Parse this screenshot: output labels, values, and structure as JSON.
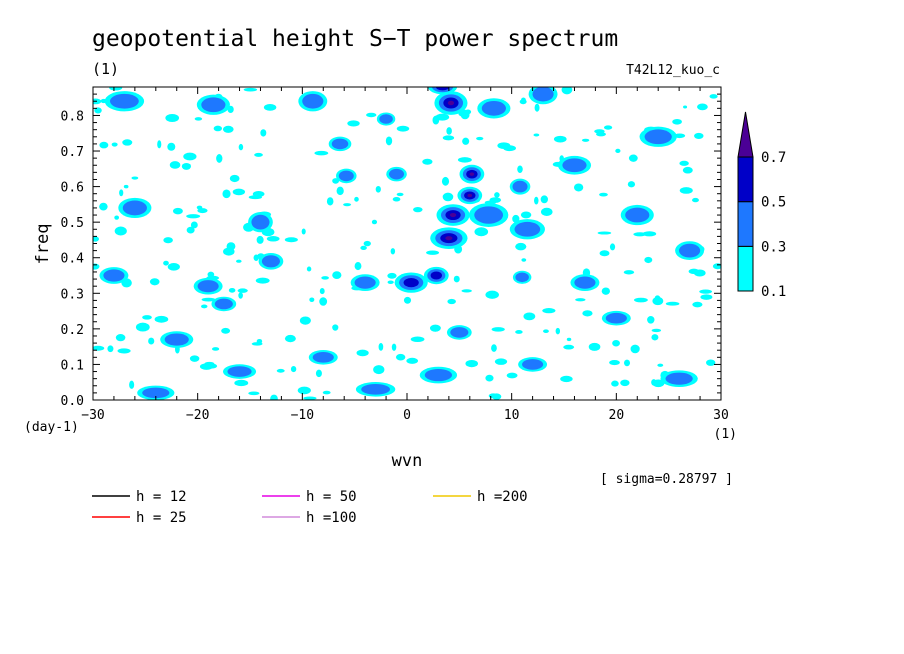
{
  "chart_data": {
    "type": "heatmap",
    "title": "geopotential height S−T power spectrum",
    "subtitle_left": "(1)",
    "subtitle_right": "T42L12_kuo_c",
    "xlabel": "wvn",
    "ylabel": "freq",
    "x_unit": "(1)",
    "y_unit": "(day-1)",
    "sigma_note": "[ sigma=0.28797 ]",
    "xlim": [
      -30,
      30
    ],
    "ylim": [
      0,
      0.88
    ],
    "x_ticks": [
      -30,
      -20,
      -10,
      0,
      10,
      20,
      30
    ],
    "x_tick_labels": [
      "−30",
      "−20",
      "−10",
      "0",
      "10",
      "20",
      "30"
    ],
    "y_ticks": [
      0.0,
      0.1,
      0.2,
      0.3,
      0.4,
      0.5,
      0.6,
      0.7,
      0.8
    ],
    "y_tick_labels": [
      "0.0",
      "0.1",
      "0.2",
      "0.3",
      "0.4",
      "0.5",
      "0.6",
      "0.7",
      "0.8"
    ],
    "colorbar": {
      "levels": [
        0.1,
        0.3,
        0.5,
        0.7
      ],
      "level_labels": [
        "0.1",
        "0.3",
        "0.5",
        "0.7"
      ],
      "colors": [
        "#00ffff",
        "#1e78ff",
        "#0000c8",
        "#4b0096"
      ]
    },
    "dispersion_curves": [
      {
        "name": "h = 12",
        "h": 12,
        "color": "#000000"
      },
      {
        "name": "h = 25",
        "h": 25,
        "color": "#ff0000"
      },
      {
        "name": "h = 50",
        "h": 50,
        "color": "#e600e6"
      },
      {
        "name": "h =100",
        "h": 100,
        "color": "#d28cdc"
      },
      {
        "name": "h =200",
        "h": 200,
        "color": "#f0c800"
      }
    ],
    "blobs": [
      {
        "x": 4.2,
        "y": 0.835,
        "level": 3,
        "rx": 1.2,
        "ry": 0.025
      },
      {
        "x": 4.4,
        "y": 0.52,
        "level": 3,
        "rx": 1.2,
        "ry": 0.022
      },
      {
        "x": 4.0,
        "y": 0.455,
        "level": 3,
        "rx": 1.4,
        "ry": 0.022
      },
      {
        "x": 6.2,
        "y": 0.635,
        "level": 3,
        "rx": 0.8,
        "ry": 0.018
      },
      {
        "x": 6.0,
        "y": 0.575,
        "level": 3,
        "rx": 0.8,
        "ry": 0.016
      },
      {
        "x": 0.4,
        "y": 0.33,
        "level": 2,
        "rx": 1.2,
        "ry": 0.02
      },
      {
        "x": 2.8,
        "y": 0.35,
        "level": 2,
        "rx": 0.8,
        "ry": 0.016
      },
      {
        "x": 3.4,
        "y": 0.88,
        "level": 2,
        "rx": 1.0,
        "ry": 0.012
      },
      {
        "x": -6.4,
        "y": 0.72,
        "level": 1,
        "rx": 0.7,
        "ry": 0.012
      },
      {
        "x": -5.8,
        "y": 0.63,
        "level": 1,
        "rx": 0.6,
        "ry": 0.012
      },
      {
        "x": -1.0,
        "y": 0.635,
        "level": 1,
        "rx": 0.6,
        "ry": 0.012
      },
      {
        "x": 11.0,
        "y": 0.345,
        "level": 1,
        "rx": 0.5,
        "ry": 0.01
      },
      {
        "x": 10.8,
        "y": 0.6,
        "level": 1,
        "rx": 0.6,
        "ry": 0.014
      },
      {
        "x": -2.0,
        "y": 0.79,
        "level": 1,
        "rx": 0.5,
        "ry": 0.01
      },
      {
        "x": -17.5,
        "y": 0.27,
        "level": 1,
        "rx": 0.8,
        "ry": 0.012
      },
      {
        "x": 7.8,
        "y": 0.52,
        "level": 1,
        "rx": 1.5,
        "ry": 0.025
      },
      {
        "x": 11.5,
        "y": 0.48,
        "level": 1,
        "rx": 1.3,
        "ry": 0.02
      },
      {
        "x": 8.3,
        "y": 0.82,
        "level": 1,
        "rx": 1.2,
        "ry": 0.02
      },
      {
        "x": 13.0,
        "y": 0.86,
        "level": 1,
        "rx": 1.0,
        "ry": 0.02
      },
      {
        "x": -27.0,
        "y": 0.84,
        "level": 1,
        "rx": 1.5,
        "ry": 0.02
      },
      {
        "x": -18.5,
        "y": 0.83,
        "level": 1,
        "rx": 1.2,
        "ry": 0.02
      },
      {
        "x": -9.0,
        "y": 0.84,
        "level": 1,
        "rx": 1.0,
        "ry": 0.02
      },
      {
        "x": -14.0,
        "y": 0.5,
        "level": 1,
        "rx": 0.8,
        "ry": 0.02
      },
      {
        "x": -26.0,
        "y": 0.54,
        "level": 1,
        "rx": 1.2,
        "ry": 0.02
      },
      {
        "x": -13.0,
        "y": 0.39,
        "level": 1,
        "rx": 0.8,
        "ry": 0.015
      },
      {
        "x": -19.0,
        "y": 0.32,
        "level": 1,
        "rx": 1.0,
        "ry": 0.015
      },
      {
        "x": -4.0,
        "y": 0.33,
        "level": 1,
        "rx": 1.0,
        "ry": 0.015
      },
      {
        "x": 5.0,
        "y": 0.19,
        "level": 1,
        "rx": 0.8,
        "ry": 0.012
      },
      {
        "x": -22.0,
        "y": 0.17,
        "level": 1,
        "rx": 1.2,
        "ry": 0.015
      },
      {
        "x": -8.0,
        "y": 0.12,
        "level": 1,
        "rx": 1.0,
        "ry": 0.012
      },
      {
        "x": 3.0,
        "y": 0.07,
        "level": 1,
        "rx": 1.4,
        "ry": 0.015
      },
      {
        "x": 12.0,
        "y": 0.1,
        "level": 1,
        "rx": 1.0,
        "ry": 0.012
      },
      {
        "x": 20.0,
        "y": 0.23,
        "level": 1,
        "rx": 1.0,
        "ry": 0.012
      },
      {
        "x": 26.0,
        "y": 0.06,
        "level": 1,
        "rx": 1.4,
        "ry": 0.015
      },
      {
        "x": -28.0,
        "y": 0.35,
        "level": 1,
        "rx": 1.0,
        "ry": 0.015
      },
      {
        "x": -24.0,
        "y": 0.02,
        "level": 1,
        "rx": 1.4,
        "ry": 0.012
      },
      {
        "x": 16.0,
        "y": 0.66,
        "level": 1,
        "rx": 1.2,
        "ry": 0.018
      },
      {
        "x": 22.0,
        "y": 0.52,
        "level": 1,
        "rx": 1.2,
        "ry": 0.02
      },
      {
        "x": 27.0,
        "y": 0.42,
        "level": 1,
        "rx": 1.0,
        "ry": 0.018
      },
      {
        "x": 24.0,
        "y": 0.74,
        "level": 1,
        "rx": 1.4,
        "ry": 0.02
      },
      {
        "x": -3.0,
        "y": 0.03,
        "level": 1,
        "rx": 1.5,
        "ry": 0.012
      },
      {
        "x": 17.0,
        "y": 0.33,
        "level": 1,
        "rx": 1.0,
        "ry": 0.015
      },
      {
        "x": -16.0,
        "y": 0.08,
        "level": 1,
        "rx": 1.2,
        "ry": 0.012
      }
    ],
    "speckle_seed": 20250427,
    "speckle_count": 260
  }
}
